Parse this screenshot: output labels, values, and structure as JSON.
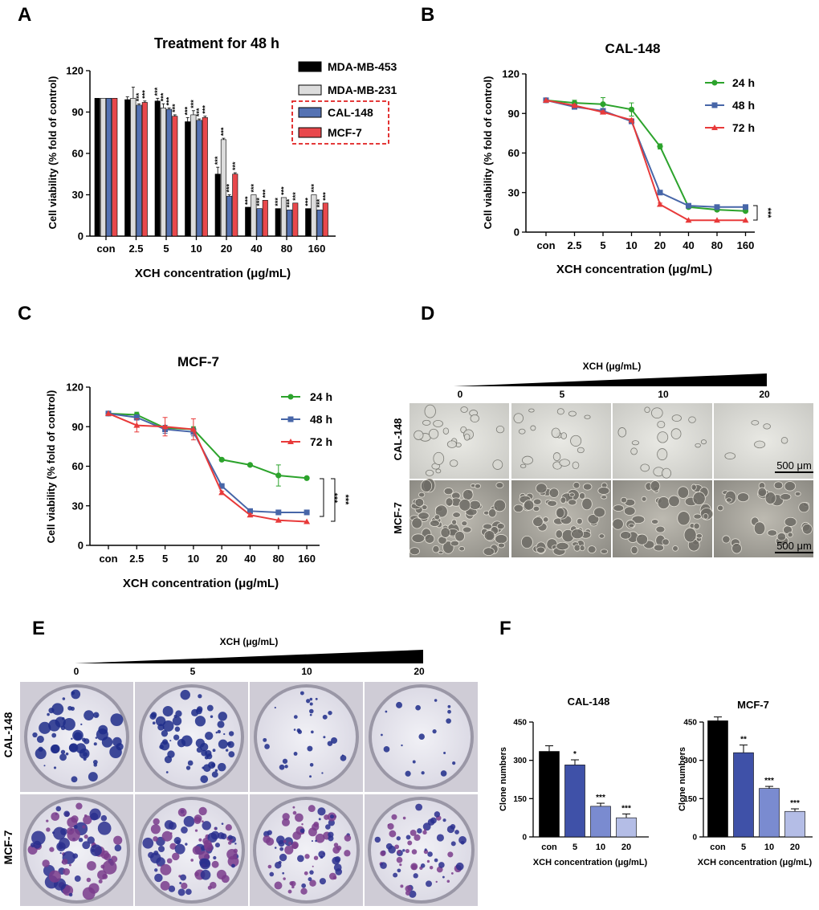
{
  "panel_letters": [
    "A",
    "B",
    "C",
    "D",
    "E",
    "F"
  ],
  "colors": {
    "black": "#000000",
    "light_gray": "#dcdcdc",
    "blue": "#5472b3",
    "red": "#e8484c",
    "green": "#2ca32c",
    "line_blue": "#4766a8",
    "line_red": "#e83a3a",
    "clone_1": "#000000",
    "clone_2": "#3f51a8",
    "clone_3": "#7a8bd0",
    "clone_4": "#b4bde6",
    "highlight_border": "#e01e1e"
  },
  "chart_data": [
    {
      "id": "A",
      "type": "bar",
      "title": "Treatment for 48 h",
      "xlabel": "XCH concentration (μg/mL)",
      "ylabel": "Cell viability (% fold of control)",
      "ylim": [
        0,
        120
      ],
      "yticks": [
        "0",
        "30",
        "60",
        "90",
        "120"
      ],
      "categories": [
        "con",
        "2.5",
        "5",
        "10",
        "20",
        "40",
        "80",
        "160"
      ],
      "series": [
        {
          "name": "MDA-MB-453",
          "color": "#000000",
          "values": [
            100,
            99,
            98,
            83,
            45,
            21,
            20,
            20
          ],
          "errors": [
            0,
            2,
            2,
            3,
            5,
            0,
            0,
            0
          ],
          "sig": [
            "",
            "",
            "***",
            "***",
            "***",
            "***",
            "***",
            "***"
          ]
        },
        {
          "name": "MDA-MB-231",
          "color": "#dcdcdc",
          "values": [
            100,
            100,
            93,
            88,
            70,
            30,
            28,
            30
          ],
          "errors": [
            0,
            8,
            3,
            3,
            1,
            0,
            0,
            0
          ],
          "sig": [
            "",
            "",
            "***",
            "***",
            "***",
            "***",
            "***",
            "***"
          ]
        },
        {
          "name": "CAL-148",
          "color": "#5472b3",
          "values": [
            100,
            95,
            92,
            84,
            29,
            20,
            19,
            19
          ],
          "errors": [
            0,
            1,
            1,
            1,
            1,
            0,
            0,
            0
          ],
          "sig": [
            "",
            "***",
            "***",
            "***",
            "***",
            "***",
            "***",
            "***"
          ]
        },
        {
          "name": "MCF-7",
          "color": "#e8484c",
          "values": [
            100,
            97,
            87,
            86,
            45,
            26,
            24,
            24
          ],
          "errors": [
            0,
            1,
            1,
            1,
            1,
            0,
            0,
            0
          ],
          "sig": [
            "",
            "***",
            "***",
            "***",
            "***",
            "***",
            "***",
            "***"
          ]
        }
      ],
      "highlighted_legend": [
        "CAL-148",
        "MCF-7"
      ]
    },
    {
      "id": "B",
      "type": "line",
      "title": "CAL-148",
      "xlabel": "XCH concentration (μg/mL)",
      "ylabel": "Cell viability (% fold of control)",
      "ylim": [
        0,
        120
      ],
      "yticks": [
        "0",
        "30",
        "60",
        "90",
        "120"
      ],
      "categories": [
        "con",
        "2.5",
        "5",
        "10",
        "20",
        "40",
        "80",
        "160"
      ],
      "series": [
        {
          "name": "24 h",
          "color": "#2ca32c",
          "marker": "circle",
          "values": [
            100,
            98,
            97,
            93,
            65,
            19,
            17,
            16
          ],
          "errors": [
            0,
            2,
            5,
            5,
            2,
            1,
            1,
            1
          ]
        },
        {
          "name": "48 h",
          "color": "#4766a8",
          "marker": "square",
          "values": [
            100,
            95,
            92,
            84,
            30,
            20,
            19,
            19
          ],
          "errors": [
            0,
            1,
            1,
            1,
            1,
            0,
            0,
            0
          ]
        },
        {
          "name": "72 h",
          "color": "#e83a3a",
          "marker": "triangle",
          "values": [
            100,
            96,
            91,
            85,
            21,
            9,
            9,
            9
          ],
          "errors": [
            0,
            1,
            1,
            1,
            1,
            0,
            0,
            0
          ]
        }
      ],
      "significance": [
        "***"
      ]
    },
    {
      "id": "C",
      "type": "line",
      "title": "MCF-7",
      "xlabel": "XCH concentration (μg/mL)",
      "ylabel": "Cell viability (% fold of control)",
      "ylim": [
        0,
        120
      ],
      "yticks": [
        "0",
        "30",
        "60",
        "90",
        "120"
      ],
      "categories": [
        "con",
        "2.5",
        "5",
        "10",
        "20",
        "40",
        "80",
        "160"
      ],
      "series": [
        {
          "name": "24 h",
          "color": "#2ca32c",
          "marker": "circle",
          "values": [
            100,
            99,
            89,
            88,
            65,
            61,
            53,
            51
          ],
          "errors": [
            0,
            2,
            2,
            2,
            1,
            1,
            8,
            1
          ]
        },
        {
          "name": "48 h",
          "color": "#4766a8",
          "marker": "square",
          "values": [
            100,
            97,
            88,
            86,
            45,
            26,
            25,
            25
          ],
          "errors": [
            0,
            2,
            3,
            3,
            1,
            1,
            0,
            0
          ]
        },
        {
          "name": "72 h",
          "color": "#e83a3a",
          "marker": "triangle",
          "values": [
            100,
            91,
            90,
            88,
            40,
            23,
            19,
            18
          ],
          "errors": [
            0,
            5,
            7,
            8,
            1,
            1,
            0,
            0
          ]
        }
      ],
      "significance": [
        "***",
        "***"
      ]
    },
    {
      "id": "F1",
      "type": "bar",
      "title": "CAL-148",
      "xlabel": "XCH concentration (μg/mL)",
      "ylabel": "Clone numbers",
      "ylim": [
        0,
        450
      ],
      "yticks": [
        "0",
        "150",
        "300",
        "450"
      ],
      "categories": [
        "con",
        "5",
        "10",
        "20"
      ],
      "values": [
        335,
        282,
        120,
        75
      ],
      "errors": [
        22,
        20,
        12,
        15
      ],
      "sig": [
        "",
        "*",
        "***",
        "***"
      ]
    },
    {
      "id": "F2",
      "type": "bar",
      "title": "MCF-7",
      "xlabel": "XCH concentration (μg/mL)",
      "ylabel": "Clone numbers",
      "ylim": [
        0,
        450
      ],
      "yticks": [
        "0",
        "150",
        "300",
        "450"
      ],
      "categories": [
        "con",
        "5",
        "10",
        "20"
      ],
      "values": [
        455,
        330,
        190,
        100
      ],
      "errors": [
        15,
        30,
        8,
        10
      ],
      "sig": [
        "",
        "**",
        "***",
        "***"
      ]
    }
  ],
  "micrographs": {
    "gradient_label": "XCH (μg/mL)",
    "concentrations": [
      "0",
      "5",
      "10",
      "20"
    ],
    "rows": [
      "CAL-148",
      "MCF-7"
    ],
    "scale_bar": "500 μm"
  },
  "colonies": {
    "gradient_label": "XCH (μg/mL)",
    "concentrations": [
      "0",
      "5",
      "10",
      "20"
    ],
    "rows": [
      "CAL-148",
      "MCF-7"
    ]
  }
}
